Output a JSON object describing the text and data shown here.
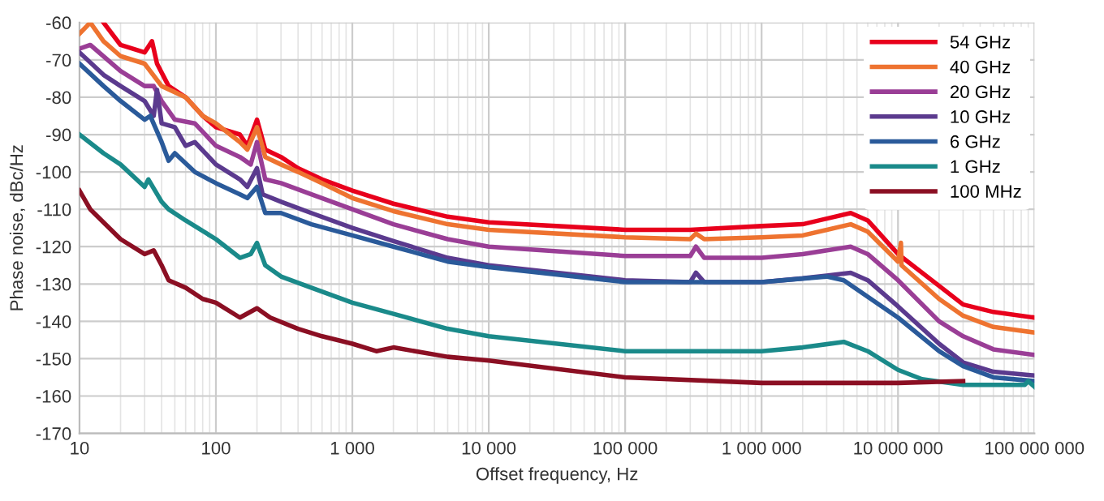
{
  "chart_data": {
    "type": "line",
    "xlabel": "Offset frequency, Hz",
    "ylabel": "Phase noise, dBc/Hz",
    "log": "x",
    "grid": true,
    "legend": "top right",
    "line_style": "solid",
    "marker": "none",
    "xlim": [
      10,
      100000000
    ],
    "xticks": [
      10,
      100,
      {
        "value": 1000,
        "label": "1 000"
      },
      {
        "value": 10000,
        "label": "10 000"
      },
      {
        "value": 100000,
        "label": "100 000"
      },
      {
        "value": 1000000,
        "label": "1 000 000"
      },
      {
        "value": 10000000,
        "label": "10 000 000"
      },
      {
        "value": 100000000,
        "label": "100 000 000"
      }
    ],
    "ylim": [
      -170,
      -60
    ],
    "yticks": [
      -170,
      -160,
      -150,
      -140,
      -130,
      -120,
      -110,
      -100,
      -90,
      -80,
      -70,
      -60
    ],
    "series": [
      {
        "name": "54 GHz",
        "color": "#e8001c",
        "x": [
          15,
          20,
          30,
          34,
          37,
          45,
          60,
          80,
          100,
          150,
          170,
          200,
          230,
          300,
          400,
          600,
          1000,
          2000,
          5000,
          10000,
          100000,
          300000,
          1000000,
          2000000,
          4500000,
          6000000,
          10000000,
          20000000,
          30000000,
          50000000,
          100000000
        ],
        "values": [
          -60,
          -66,
          -68,
          -65,
          -71,
          -77,
          -80,
          -85,
          -88,
          -90,
          -93,
          -86,
          -94,
          -96,
          -99,
          -102,
          -105,
          -108.5,
          -112,
          -113.5,
          -115.5,
          -115.5,
          -114.5,
          -114,
          -111,
          -113,
          -122,
          -130.5,
          -135.5,
          -137.5,
          -139
        ]
      },
      {
        "name": "40 GHz",
        "color": "#ee7330",
        "x": [
          10,
          12,
          15,
          20,
          30,
          40,
          60,
          80,
          100,
          150,
          170,
          200,
          230,
          300,
          400,
          600,
          1000,
          2000,
          5000,
          10000,
          100000,
          300000,
          330000,
          380000,
          1000000,
          2000000,
          4500000,
          6000000,
          10000000,
          10500000,
          10600000,
          20000000,
          30000000,
          50000000,
          100000000
        ],
        "values": [
          -63,
          -60,
          -65,
          -69,
          -71,
          -77,
          -80,
          -85,
          -87,
          -92,
          -94,
          -88,
          -96,
          -98,
          -100,
          -103,
          -107,
          -110.5,
          -114,
          -115.5,
          -117.5,
          -118,
          -116.5,
          -118,
          -117.5,
          -117,
          -114,
          -116,
          -124,
          -119,
          -125,
          -134,
          -138.5,
          -141.5,
          -143
        ]
      },
      {
        "name": "20 GHz",
        "color": "#9a3e96",
        "x": [
          10,
          12,
          20,
          30,
          35,
          40,
          50,
          70,
          100,
          150,
          180,
          200,
          230,
          300,
          500,
          1000,
          2000,
          5000,
          10000,
          100000,
          300000,
          330000,
          380000,
          1000000,
          2000000,
          4500000,
          6000000,
          10000000,
          20000000,
          30000000,
          50000000,
          100000000
        ],
        "values": [
          -67,
          -66,
          -73,
          -77,
          -77,
          -81,
          -86,
          -87,
          -93,
          -96,
          -98,
          -92,
          -102,
          -103,
          -106,
          -110,
          -114,
          -118,
          -120,
          -122.5,
          -122.5,
          -120,
          -123,
          -123,
          -122,
          -120,
          -122,
          -129,
          -140,
          -144,
          -147.5,
          -149
        ]
      },
      {
        "name": "10 GHz",
        "color": "#5b3a8e",
        "x": [
          10,
          15,
          20,
          30,
          35,
          37,
          40,
          50,
          60,
          70,
          100,
          150,
          170,
          200,
          220,
          300,
          500,
          1000,
          2000,
          5000,
          10000,
          100000,
          300000,
          330000,
          380000,
          1000000,
          2000000,
          4500000,
          6000000,
          10000000,
          20000000,
          30000000,
          50000000,
          100000000
        ],
        "values": [
          -68,
          -74,
          -77,
          -81,
          -85,
          -78,
          -87,
          -88,
          -93,
          -92,
          -98,
          -102,
          -104,
          -99,
          -106,
          -108,
          -111,
          -115,
          -118.5,
          -123,
          -125,
          -129,
          -129.5,
          -127,
          -129.5,
          -129.5,
          -128.5,
          -127,
          -129,
          -136,
          -146,
          -151,
          -153.5,
          -154.5
        ]
      },
      {
        "name": "6 GHz",
        "color": "#2a5a9a",
        "x": [
          10,
          15,
          20,
          30,
          33,
          40,
          45,
          50,
          70,
          100,
          150,
          170,
          200,
          230,
          300,
          500,
          1000,
          2000,
          5000,
          10000,
          100000,
          1000000,
          3000000,
          4000000,
          10000000,
          20000000,
          30000000,
          50000000,
          100000000
        ],
        "values": [
          -71,
          -77,
          -81,
          -86,
          -85,
          -92,
          -97,
          -95,
          -100,
          -103,
          -106,
          -107,
          -104,
          -111,
          -111,
          -114,
          -117,
          -120,
          -124,
          -125.5,
          -129.5,
          -129.5,
          -128,
          -129,
          -139,
          -148,
          -152,
          -155,
          -156
        ]
      },
      {
        "name": "1 GHz",
        "color": "#1a8a8a",
        "x": [
          10,
          15,
          20,
          30,
          32,
          40,
          45,
          60,
          100,
          150,
          180,
          200,
          230,
          300,
          500,
          1000,
          2000,
          5000,
          10000,
          100000,
          1000000,
          2000000,
          4000000,
          6000000,
          10000000,
          15000000,
          30000000,
          85000000,
          90000000,
          100000000
        ],
        "values": [
          -90,
          -95,
          -98,
          -104,
          -102,
          -108,
          -110,
          -113,
          -118,
          -123,
          -122,
          -119,
          -125,
          -128,
          -131,
          -135,
          -138,
          -142,
          -144,
          -148,
          -148,
          -147,
          -145.5,
          -148,
          -153,
          -155.5,
          -157,
          -157,
          -156,
          -157.5
        ]
      },
      {
        "name": "100 MHz",
        "color": "#8b0f23",
        "x": [
          10,
          12,
          20,
          30,
          35,
          40,
          45,
          60,
          80,
          100,
          150,
          200,
          250,
          400,
          600,
          1000,
          1500,
          2000,
          5000,
          10000,
          100000,
          1000000,
          10000000,
          30000000
        ],
        "values": [
          -105,
          -110,
          -118,
          -122,
          -121,
          -125,
          -129,
          -131,
          -134,
          -135,
          -139,
          -136.5,
          -139,
          -142,
          -144,
          -146,
          -148,
          -147,
          -149.5,
          -150.5,
          -155,
          -156.5,
          -156.5,
          -156
        ]
      }
    ]
  }
}
